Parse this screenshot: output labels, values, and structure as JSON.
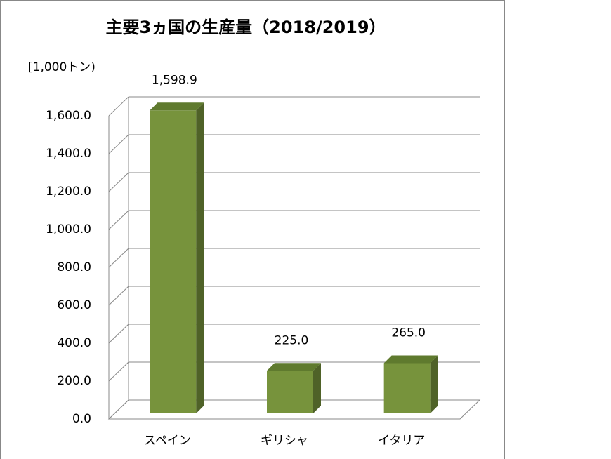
{
  "chart_data": {
    "type": "bar3d",
    "title": "主要3ヵ国の生産量（2018/2019）",
    "y_axis_label": "[1,000トン)",
    "categories": [
      "スペイン",
      "ギリシャ",
      "イタリア"
    ],
    "values": [
      1598.9,
      225,
      265
    ],
    "value_labels": [
      "1,598.9",
      "225.0",
      "265.0"
    ],
    "color": "#77933c",
    "ylim": [
      0,
      1600
    ],
    "yticks": [
      {
        "value": 0,
        "label": "0.0"
      },
      {
        "value": 200,
        "label": "200.0"
      },
      {
        "value": 400,
        "label": "400.0"
      },
      {
        "value": 600,
        "label": "600.0"
      },
      {
        "value": 800,
        "label": "800.0"
      },
      {
        "value": 1000,
        "label": "1,000.0"
      },
      {
        "value": 1200,
        "label": "1,200.0"
      },
      {
        "value": 1400,
        "label": "1,400.0"
      },
      {
        "value": 1600,
        "label": "1,600.0"
      }
    ],
    "grid": true
  }
}
